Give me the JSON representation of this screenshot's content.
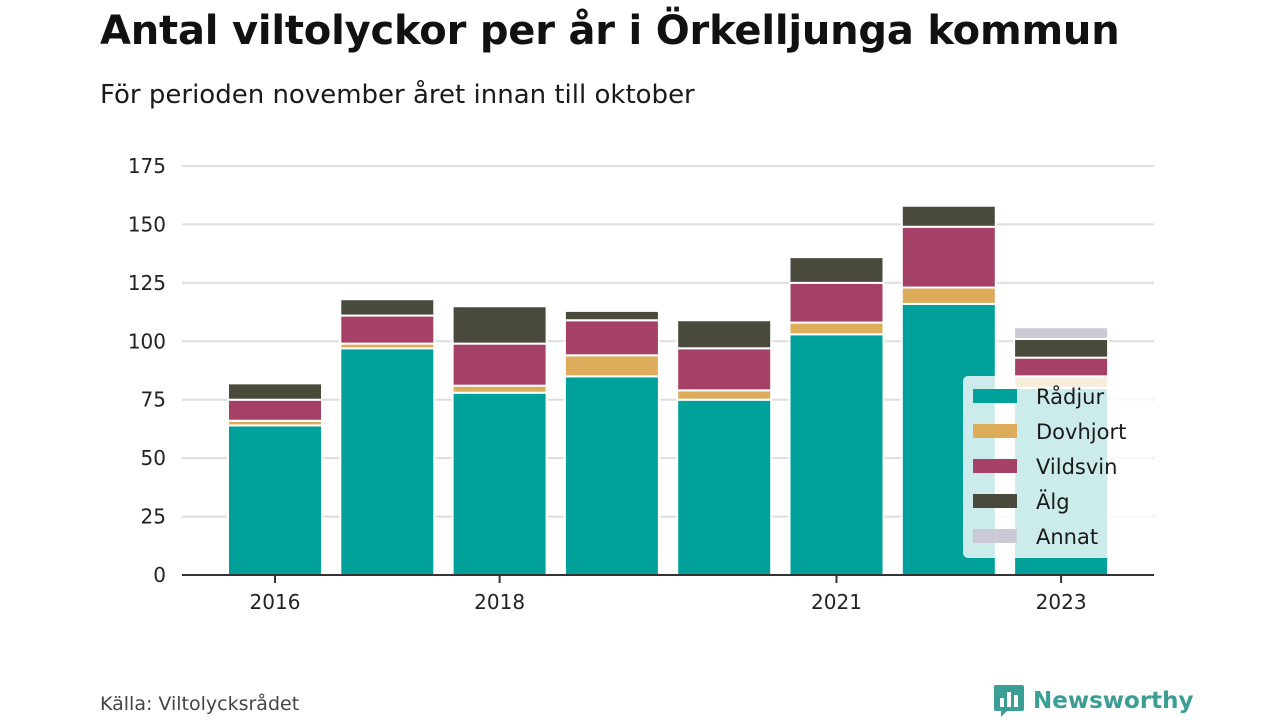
{
  "header": {
    "title": "Antal viltolyckor per år i Örkelljunga kommun",
    "subtitle": "För perioden november året innan till oktober"
  },
  "footer": {
    "source": "Källa: Viltolycksrådet",
    "brand": "Newsworthy",
    "brand_icon": "bar-chart-bubble-icon",
    "brand_color": "#3a9e95"
  },
  "chart_data": {
    "type": "bar",
    "stacked": true,
    "categories": [
      "2016",
      "2017",
      "2018",
      "2019",
      "2020",
      "2021",
      "2022",
      "2023"
    ],
    "x_tick_labels": [
      "2016",
      "",
      "2018",
      "",
      "",
      "2021",
      "",
      "2023"
    ],
    "y_ticks": [
      0,
      25,
      50,
      75,
      100,
      125,
      150,
      175
    ],
    "ylim": [
      0,
      175
    ],
    "grid": true,
    "legend_position": "bottom-right",
    "series": [
      {
        "name": "Rådjur",
        "color": "#00a19a",
        "values": [
          64,
          97,
          78,
          85,
          75,
          103,
          116,
          80
        ]
      },
      {
        "name": "Dovhjort",
        "color": "#dcac5a",
        "values": [
          2,
          2,
          3,
          9,
          4,
          5,
          7,
          5
        ]
      },
      {
        "name": "Vildsvin",
        "color": "#a54066",
        "values": [
          9,
          12,
          18,
          15,
          18,
          17,
          26,
          8
        ]
      },
      {
        "name": "Älg",
        "color": "#4a4a3c",
        "values": [
          7,
          7,
          16,
          4,
          12,
          11,
          9,
          8
        ]
      },
      {
        "name": "Annat",
        "color": "#cbc9d6",
        "values": [
          0,
          0,
          0,
          0,
          0,
          0,
          0,
          5
        ]
      }
    ]
  }
}
